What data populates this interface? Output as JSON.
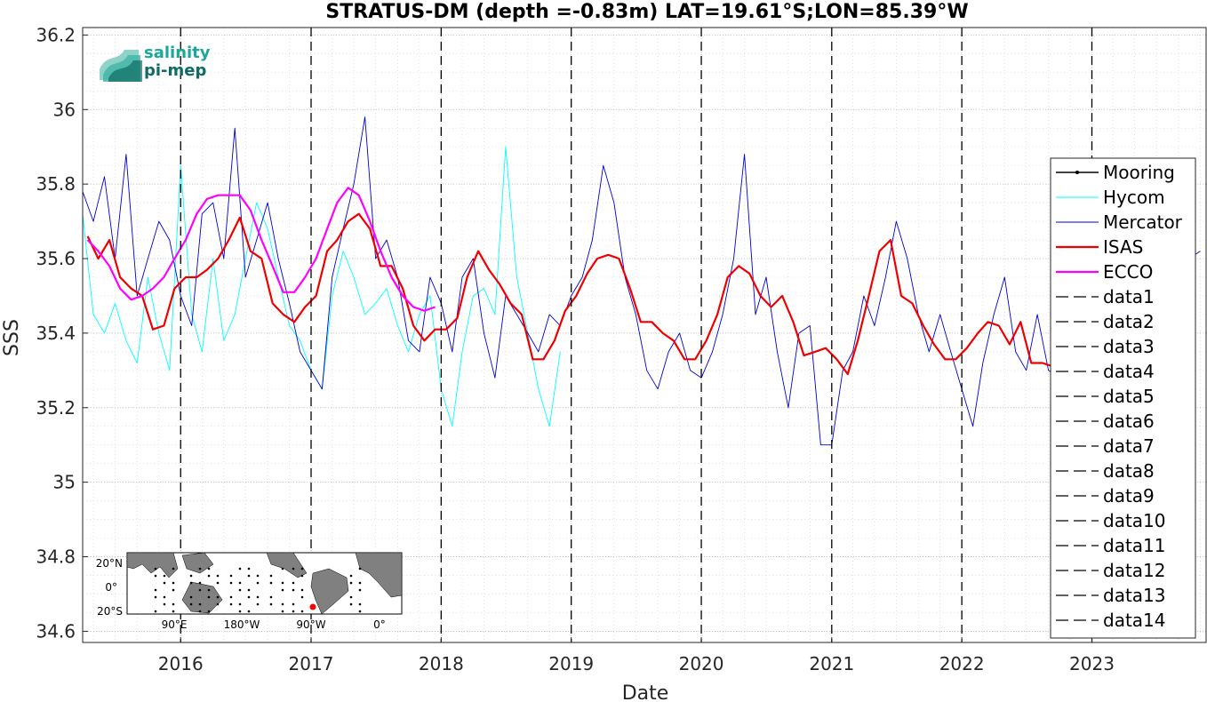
{
  "chart_data": {
    "type": "line",
    "title": "STRATUS-DM (depth =-0.83m) LAT=19.61°S;LON=85.39°W",
    "xlabel": "Date",
    "ylabel": "SSS",
    "xlim": [
      "2015-04-01",
      "2023-11-20"
    ],
    "ylim": [
      34.57,
      36.22
    ],
    "x_ticks": [
      "2016",
      "2017",
      "2018",
      "2019",
      "2020",
      "2021",
      "2022",
      "2023"
    ],
    "y_ticks": [
      34.6,
      34.8,
      35,
      35.2,
      35.4,
      35.6,
      35.8,
      36,
      36.2
    ],
    "y_tick_labels": [
      "34.6",
      "34.8",
      "35",
      "35.2",
      "35.4",
      "35.6",
      "35.8",
      "36",
      "36.2"
    ],
    "grid": true,
    "legend_position": "right",
    "series": [
      {
        "name": "Mooring",
        "color": "#000000",
        "style": "solid-dot",
        "values": []
      },
      {
        "name": "Hycom",
        "color": "#00ffff",
        "style": "solid-thin",
        "x": [
          "2015-04-01",
          "2015-05-01",
          "2015-06-01",
          "2015-07-01",
          "2015-08-01",
          "2015-09-01",
          "2015-10-01",
          "2015-11-01",
          "2015-12-01",
          "2016-01-01",
          "2016-02-01",
          "2016-03-01",
          "2016-04-01",
          "2016-05-01",
          "2016-06-01",
          "2016-07-01",
          "2016-08-01",
          "2016-09-01",
          "2016-10-01",
          "2016-11-01",
          "2016-12-01",
          "2017-01-01",
          "2017-02-01",
          "2017-03-01",
          "2017-04-01",
          "2017-05-01",
          "2017-06-01",
          "2017-07-01",
          "2017-08-01",
          "2017-09-01",
          "2017-10-01",
          "2017-11-01",
          "2017-12-01",
          "2018-01-01",
          "2018-02-01",
          "2018-03-01",
          "2018-04-01",
          "2018-05-01",
          "2018-06-01",
          "2018-07-01",
          "2018-08-01",
          "2018-09-01",
          "2018-10-01",
          "2018-11-01",
          "2018-12-01"
        ],
        "y": [
          35.72,
          35.45,
          35.4,
          35.48,
          35.38,
          35.32,
          35.55,
          35.4,
          35.3,
          35.85,
          35.45,
          35.35,
          35.6,
          35.38,
          35.45,
          35.6,
          35.75,
          35.68,
          35.55,
          35.42,
          35.38,
          35.3,
          35.25,
          35.5,
          35.62,
          35.55,
          35.45,
          35.48,
          35.52,
          35.42,
          35.35,
          35.45,
          35.5,
          35.25,
          35.15,
          35.35,
          35.5,
          35.52,
          35.45,
          35.9,
          35.55,
          35.4,
          35.25,
          35.15,
          35.35
        ]
      },
      {
        "name": "Mercator",
        "color": "#0000cd",
        "style": "solid-thin",
        "x": [
          "2015-04-01",
          "2015-05-01",
          "2015-06-01",
          "2015-07-01",
          "2015-08-01",
          "2015-09-01",
          "2015-10-01",
          "2015-11-01",
          "2015-12-01",
          "2016-01-01",
          "2016-02-01",
          "2016-03-01",
          "2016-04-01",
          "2016-05-01",
          "2016-06-01",
          "2016-07-01",
          "2016-08-01",
          "2016-09-01",
          "2016-10-01",
          "2016-11-01",
          "2016-12-01",
          "2017-01-01",
          "2017-02-01",
          "2017-03-01",
          "2017-04-01",
          "2017-05-01",
          "2017-06-01",
          "2017-07-01",
          "2017-08-01",
          "2017-09-01",
          "2017-10-01",
          "2017-11-01",
          "2017-12-01",
          "2018-01-01",
          "2018-02-01",
          "2018-03-01",
          "2018-04-01",
          "2018-05-01",
          "2018-06-01",
          "2018-07-01",
          "2018-08-01",
          "2018-09-01",
          "2018-10-01",
          "2018-11-01",
          "2018-12-01",
          "2019-01-01",
          "2019-02-01",
          "2019-03-01",
          "2019-04-01",
          "2019-05-01",
          "2019-06-01",
          "2019-07-01",
          "2019-08-01",
          "2019-09-01",
          "2019-10-01",
          "2019-11-01",
          "2019-12-01",
          "2020-01-01",
          "2020-02-01",
          "2020-03-01",
          "2020-04-01",
          "2020-05-01",
          "2020-06-01",
          "2020-07-01",
          "2020-08-01",
          "2020-09-01",
          "2020-10-01",
          "2020-11-01",
          "2020-12-01",
          "2021-01-01",
          "2021-02-01",
          "2021-03-01",
          "2021-04-01",
          "2021-05-01",
          "2021-06-01",
          "2021-07-01",
          "2021-08-01",
          "2021-09-01",
          "2021-10-01",
          "2021-11-01",
          "2021-12-01",
          "2022-01-01",
          "2022-02-01",
          "2022-03-01",
          "2022-04-01",
          "2022-05-01",
          "2022-06-01",
          "2022-07-01",
          "2022-08-01",
          "2022-09-01",
          "2022-10-01",
          "2022-11-01",
          "2022-12-01",
          "2023-01-01",
          "2023-02-01",
          "2023-03-01",
          "2023-04-01",
          "2023-05-01",
          "2023-06-01",
          "2023-07-01",
          "2023-08-01",
          "2023-09-01",
          "2023-10-01",
          "2023-11-01"
        ],
        "y": [
          35.78,
          35.7,
          35.82,
          35.6,
          35.88,
          35.5,
          35.6,
          35.7,
          35.65,
          35.5,
          35.42,
          35.72,
          35.75,
          35.6,
          35.95,
          35.55,
          35.65,
          35.75,
          35.6,
          35.48,
          35.35,
          35.3,
          35.25,
          35.55,
          35.68,
          35.8,
          35.98,
          35.6,
          35.65,
          35.55,
          35.38,
          35.35,
          35.55,
          35.48,
          35.35,
          35.55,
          35.6,
          35.4,
          35.28,
          35.5,
          35.45,
          35.4,
          35.35,
          35.45,
          35.42,
          35.5,
          35.55,
          35.65,
          35.85,
          35.75,
          35.55,
          35.45,
          35.3,
          35.25,
          35.35,
          35.4,
          35.3,
          35.28,
          35.35,
          35.45,
          35.6,
          35.88,
          35.45,
          35.55,
          35.35,
          35.2,
          35.4,
          35.42,
          35.1,
          35.1,
          35.3,
          35.35,
          35.5,
          35.42,
          35.55,
          35.7,
          35.6,
          35.45,
          35.35,
          35.45,
          35.35,
          35.25,
          35.15,
          35.32,
          35.45,
          35.55,
          35.35,
          35.3,
          35.45,
          35.3,
          35.28,
          35.45,
          35.35,
          35.25,
          35.2,
          35.3,
          35.25,
          35.15,
          35.2,
          35.3,
          35.4,
          35.55,
          35.6,
          35.62
        ]
      },
      {
        "name": "ISAS",
        "color": "#ee0000",
        "style": "solid-thick",
        "x": [
          "2015-04-15",
          "2015-05-15",
          "2015-06-15",
          "2015-07-15",
          "2015-08-15",
          "2015-09-15",
          "2015-10-15",
          "2015-11-15",
          "2015-12-15",
          "2016-01-15",
          "2016-02-15",
          "2016-03-15",
          "2016-04-15",
          "2016-05-15",
          "2016-06-15",
          "2016-07-15",
          "2016-08-15",
          "2016-09-15",
          "2016-10-15",
          "2016-11-15",
          "2016-12-15",
          "2017-01-15",
          "2017-02-15",
          "2017-03-15",
          "2017-04-15",
          "2017-05-15",
          "2017-06-15",
          "2017-07-15",
          "2017-08-15",
          "2017-09-15",
          "2017-10-15",
          "2017-11-15",
          "2017-12-15",
          "2018-01-15",
          "2018-02-15",
          "2018-03-15",
          "2018-04-15",
          "2018-05-15",
          "2018-06-15",
          "2018-07-15",
          "2018-08-15",
          "2018-09-15",
          "2018-10-15",
          "2018-11-15",
          "2018-12-15",
          "2019-01-15",
          "2019-02-15",
          "2019-03-15",
          "2019-04-15",
          "2019-05-15",
          "2019-06-15",
          "2019-07-15",
          "2019-08-15",
          "2019-09-15",
          "2019-10-15",
          "2019-11-15",
          "2019-12-15",
          "2020-01-15",
          "2020-02-15",
          "2020-03-15",
          "2020-04-15",
          "2020-05-15",
          "2020-06-15",
          "2020-07-15",
          "2020-08-15",
          "2020-09-15",
          "2020-10-15",
          "2020-11-15",
          "2020-12-15",
          "2021-01-15",
          "2021-02-15",
          "2021-03-15",
          "2021-04-15",
          "2021-05-15",
          "2021-06-15",
          "2021-07-15",
          "2021-08-15",
          "2021-09-15",
          "2021-10-15",
          "2021-11-15",
          "2021-12-15",
          "2022-01-15",
          "2022-02-15",
          "2022-03-15",
          "2022-04-15",
          "2022-05-15",
          "2022-06-15",
          "2022-07-15",
          "2022-08-15",
          "2022-09-15"
        ],
        "y": [
          35.66,
          35.6,
          35.65,
          35.55,
          35.52,
          35.5,
          35.41,
          35.42,
          35.52,
          35.55,
          35.55,
          35.57,
          35.6,
          35.65,
          35.71,
          35.62,
          35.6,
          35.48,
          35.45,
          35.43,
          35.47,
          35.5,
          35.62,
          35.65,
          35.7,
          35.72,
          35.68,
          35.58,
          35.58,
          35.52,
          35.42,
          35.38,
          35.41,
          35.41,
          35.44,
          35.55,
          35.62,
          35.57,
          35.53,
          35.48,
          35.45,
          35.33,
          35.33,
          35.38,
          35.46,
          35.5,
          35.56,
          35.6,
          35.61,
          35.6,
          35.52,
          35.43,
          35.43,
          35.4,
          35.38,
          35.33,
          35.33,
          35.38,
          35.45,
          35.55,
          35.58,
          35.56,
          35.5,
          35.47,
          35.5,
          35.43,
          35.34,
          35.35,
          35.36,
          35.33,
          35.29,
          35.38,
          35.5,
          35.62,
          35.65,
          35.5,
          35.48,
          35.42,
          35.37,
          35.33,
          35.33,
          35.36,
          35.4,
          35.43,
          35.42,
          35.37,
          35.43,
          35.32,
          35.32,
          35.31
        ]
      },
      {
        "name": "ECCO",
        "color": "#ff00ff",
        "style": "solid-thick",
        "x": [
          "2015-04-15",
          "2015-05-15",
          "2015-06-15",
          "2015-07-15",
          "2015-08-15",
          "2015-09-15",
          "2015-10-15",
          "2015-11-15",
          "2015-12-15",
          "2016-01-15",
          "2016-02-15",
          "2016-03-15",
          "2016-04-15",
          "2016-05-15",
          "2016-06-15",
          "2016-07-15",
          "2016-08-15",
          "2016-09-15",
          "2016-10-15",
          "2016-11-15",
          "2016-12-15",
          "2017-01-15",
          "2017-02-15",
          "2017-03-15",
          "2017-04-15",
          "2017-05-15",
          "2017-06-15",
          "2017-07-15",
          "2017-08-15",
          "2017-09-15",
          "2017-10-15",
          "2017-11-15",
          "2017-12-15"
        ],
        "y": [
          35.65,
          35.62,
          35.58,
          35.52,
          35.49,
          35.5,
          35.52,
          35.55,
          35.6,
          35.65,
          35.72,
          35.76,
          35.77,
          35.77,
          35.77,
          35.73,
          35.65,
          35.58,
          35.51,
          35.51,
          35.55,
          35.6,
          35.68,
          35.75,
          35.79,
          35.77,
          35.7,
          35.62,
          35.55,
          35.5,
          35.47,
          35.46,
          35.47
        ]
      },
      {
        "name": "data1",
        "color": "#000000",
        "style": "dashed",
        "x_date": "2016-01-01"
      },
      {
        "name": "data2",
        "color": "#000000",
        "style": "dashed",
        "x_date": "2017-01-01"
      },
      {
        "name": "data3",
        "color": "#000000",
        "style": "dashed",
        "x_date": "2018-01-01"
      },
      {
        "name": "data4",
        "color": "#000000",
        "style": "dashed",
        "x_date": "2019-01-01"
      },
      {
        "name": "data5",
        "color": "#000000",
        "style": "dashed",
        "x_date": "2020-01-01"
      },
      {
        "name": "data6",
        "color": "#000000",
        "style": "dashed",
        "x_date": "2021-01-01"
      },
      {
        "name": "data7",
        "color": "#000000",
        "style": "dashed",
        "x_date": "2022-01-01"
      },
      {
        "name": "data8",
        "color": "#000000",
        "style": "dashed",
        "x_date": "2023-01-01"
      },
      {
        "name": "data9",
        "color": "#000000",
        "style": "dashed"
      },
      {
        "name": "data10",
        "color": "#000000",
        "style": "dashed"
      },
      {
        "name": "data11",
        "color": "#000000",
        "style": "dashed"
      },
      {
        "name": "data12",
        "color": "#000000",
        "style": "dashed"
      },
      {
        "name": "data13",
        "color": "#000000",
        "style": "dashed"
      },
      {
        "name": "data14",
        "color": "#000000",
        "style": "dashed"
      }
    ]
  },
  "logo": {
    "line1": "salinity",
    "line2": "pi-mep",
    "color1": "#1aa89a",
    "color2": "#0f6b63"
  },
  "inset_map": {
    "lat_labels": [
      "20°N",
      "0°",
      "20°S"
    ],
    "lon_labels": [
      "90°E",
      "180°W",
      "90°W",
      "0°"
    ],
    "marker_color": "#ff0000"
  }
}
